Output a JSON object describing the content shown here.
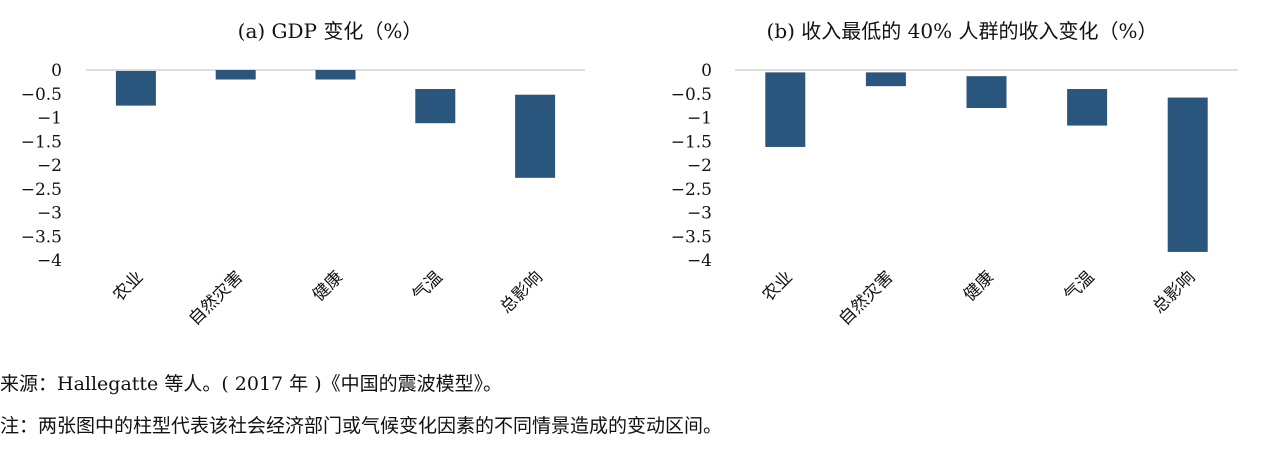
{
  "chart_data": [
    {
      "type": "bar",
      "title": "(a) GDP 变化（%）",
      "categories": [
        "农业",
        "自然灾害",
        "健康",
        "气温",
        "总影响"
      ],
      "ranges": [
        [
          -0.75,
          -0.02
        ],
        [
          -0.2,
          0
        ],
        [
          -0.2,
          0
        ],
        [
          -1.12,
          -0.4
        ],
        [
          -2.27,
          -0.52
        ]
      ],
      "ylim": [
        -4,
        0
      ],
      "yticks": [
        0,
        -0.5,
        -1,
        -1.5,
        -2,
        -2.5,
        -3,
        -3.5,
        -4
      ],
      "ytick_labels": [
        "0",
        "−0.5",
        "−1",
        "−1.5",
        "−2",
        "−2.5",
        "−3",
        "−3.5",
        "−4"
      ],
      "bar_color": "#2a557d",
      "grid": false
    },
    {
      "type": "bar",
      "title": "(b) 收入最低的 40% 人群的收入变化（%）",
      "categories": [
        "农业",
        "自然灾害",
        "健康",
        "气温",
        "总影响"
      ],
      "ranges": [
        [
          -1.62,
          -0.05
        ],
        [
          -0.34,
          -0.05
        ],
        [
          -0.8,
          -0.13
        ],
        [
          -1.17,
          -0.4
        ],
        [
          -3.83,
          -0.58
        ]
      ],
      "ylim": [
        -4,
        0
      ],
      "yticks": [
        0,
        -0.5,
        -1,
        -1.5,
        -2,
        -2.5,
        -3,
        -3.5,
        -4
      ],
      "ytick_labels": [
        "0",
        "−0.5",
        "−1",
        "−1.5",
        "−2",
        "−2.5",
        "−3",
        "−3.5",
        "−4"
      ],
      "bar_color": "#2a557d",
      "grid": false
    }
  ],
  "notes": {
    "source": "来源：Hallegatte 等人。( 2017 年 )《中国的震波模型》。",
    "note": "注：两张图中的柱型代表该社会经济部门或气候变化因素的不同情景造成的变动区间。"
  }
}
